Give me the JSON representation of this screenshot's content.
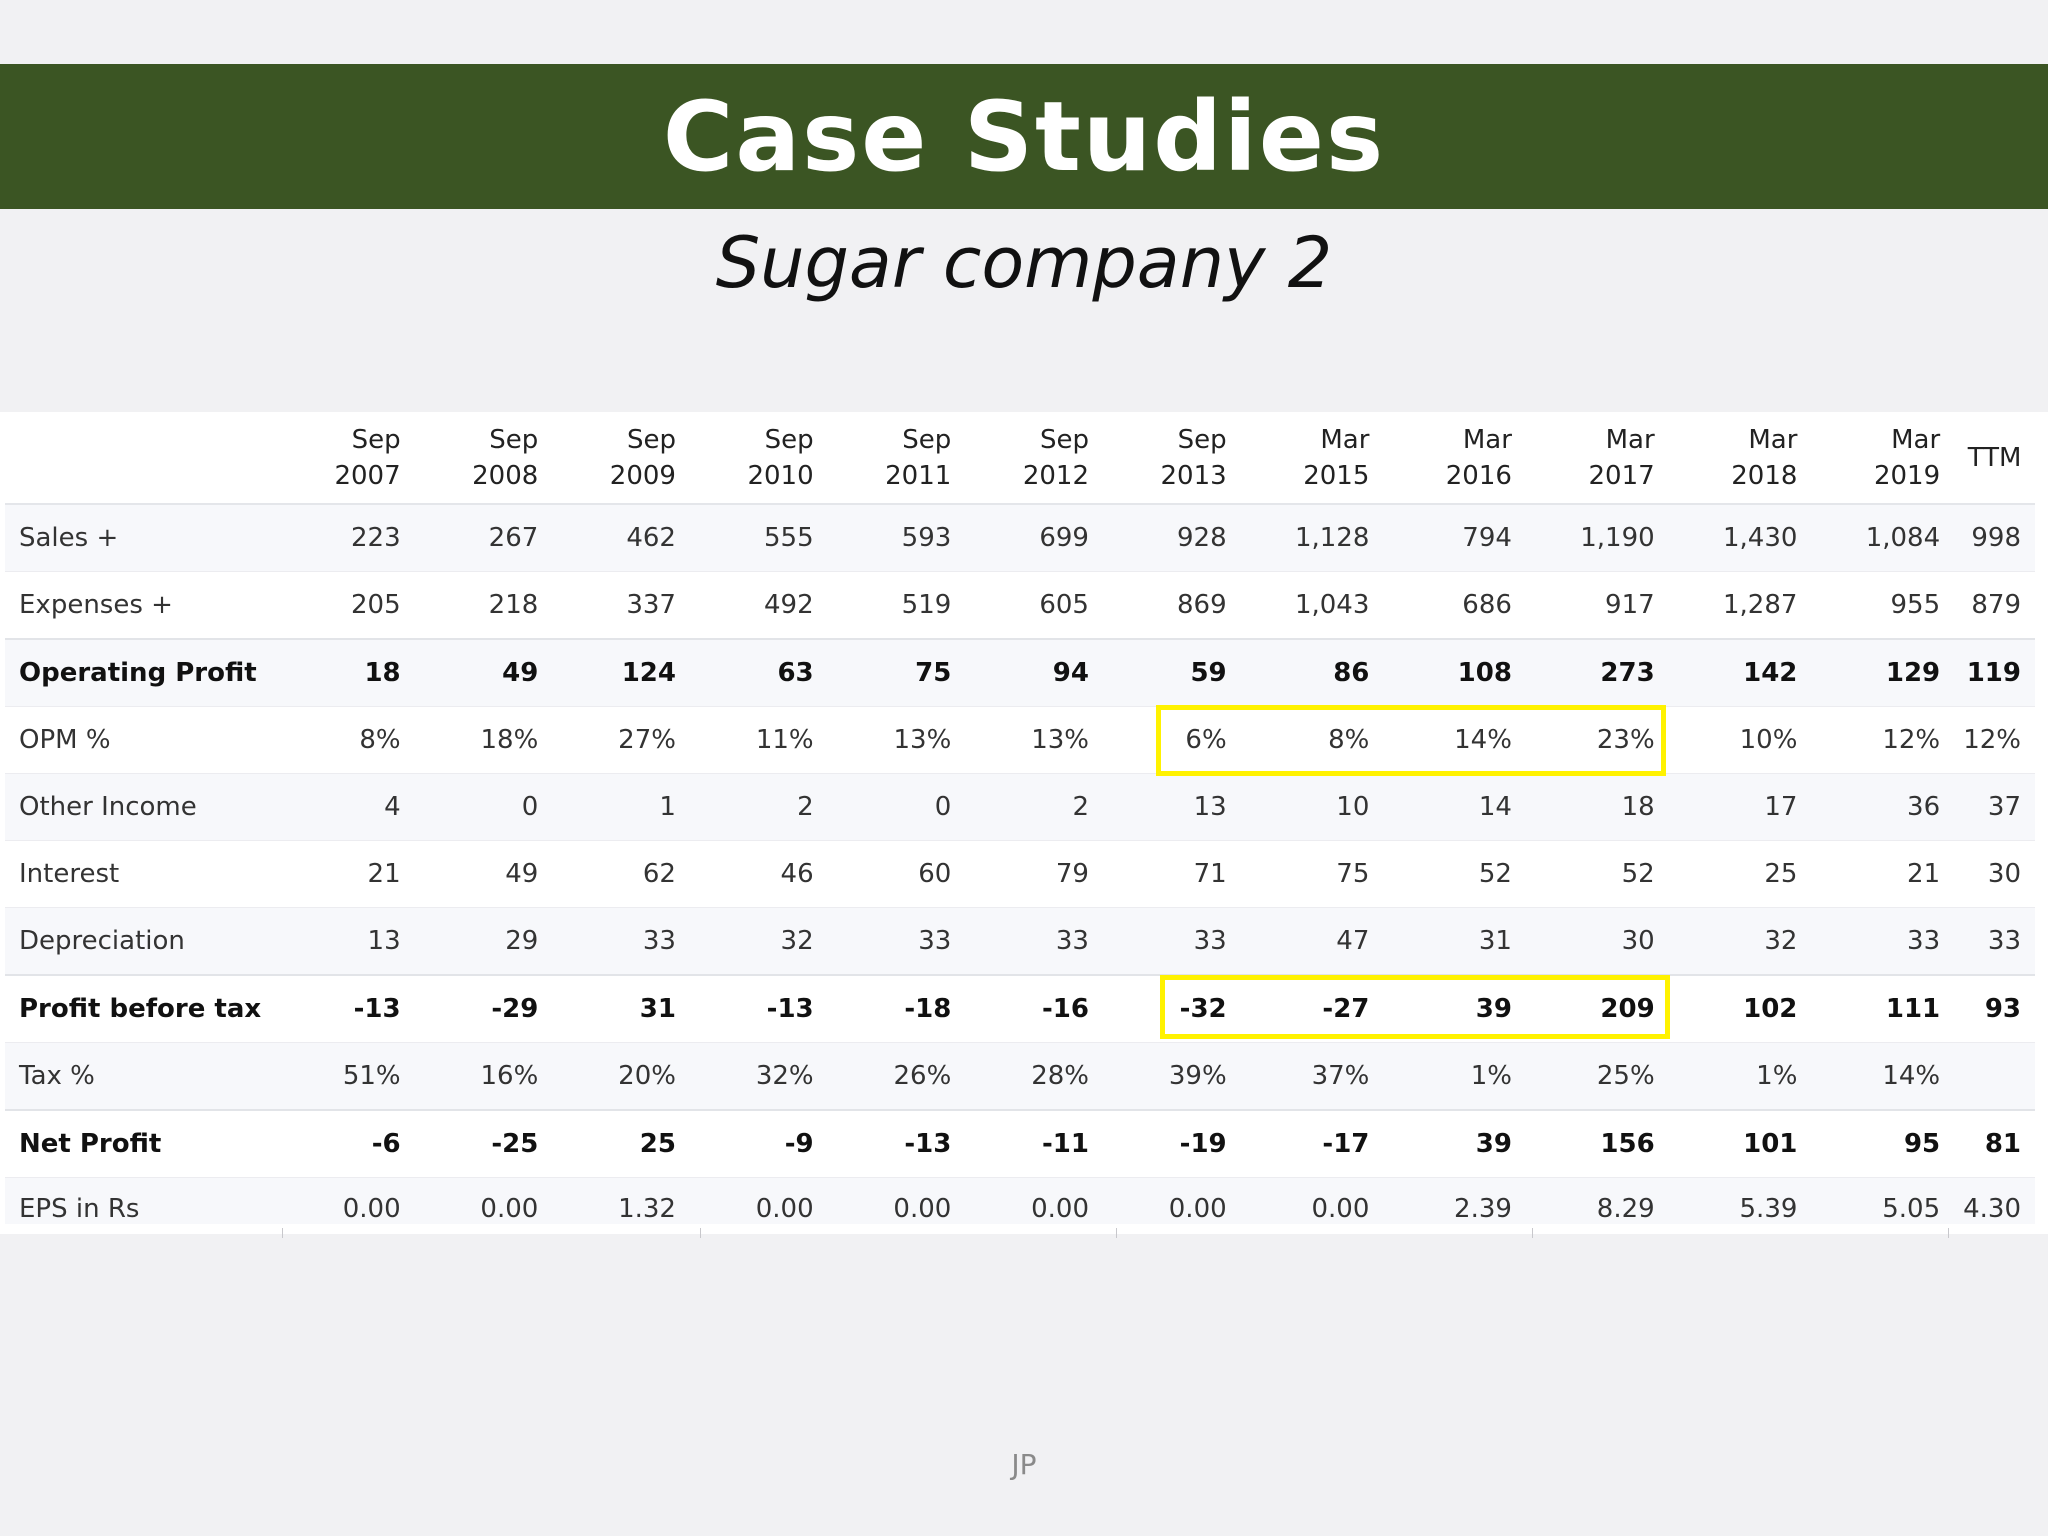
{
  "slide": {
    "title": "Case Studies",
    "subtitle": "Sugar company 2",
    "footer": "JP",
    "highlight_color": "#fff200",
    "header_color": "#3b5523"
  },
  "table": {
    "columns": [
      {
        "line1": "Sep",
        "line2": "2007"
      },
      {
        "line1": "Sep",
        "line2": "2008"
      },
      {
        "line1": "Sep",
        "line2": "2009"
      },
      {
        "line1": "Sep",
        "line2": "2010"
      },
      {
        "line1": "Sep",
        "line2": "2011"
      },
      {
        "line1": "Sep",
        "line2": "2012"
      },
      {
        "line1": "Sep",
        "line2": "2013"
      },
      {
        "line1": "Mar",
        "line2": "2015"
      },
      {
        "line1": "Mar",
        "line2": "2016"
      },
      {
        "line1": "Mar",
        "line2": "2017"
      },
      {
        "line1": "Mar",
        "line2": "2018"
      },
      {
        "line1": "Mar",
        "line2": "2019"
      },
      {
        "line1": "TTM",
        "line2": ""
      }
    ],
    "rows": [
      {
        "label": "Sales +",
        "bold": false,
        "values": [
          "223",
          "267",
          "462",
          "555",
          "593",
          "699",
          "928",
          "1,128",
          "794",
          "1,190",
          "1,430",
          "1,084",
          "998"
        ]
      },
      {
        "label": "Expenses +",
        "bold": false,
        "values": [
          "205",
          "218",
          "337",
          "492",
          "519",
          "605",
          "869",
          "1,043",
          "686",
          "917",
          "1,287",
          "955",
          "879"
        ]
      },
      {
        "label": "Operating Profit",
        "bold": true,
        "values": [
          "18",
          "49",
          "124",
          "63",
          "75",
          "94",
          "59",
          "86",
          "108",
          "273",
          "142",
          "129",
          "119"
        ]
      },
      {
        "label": "OPM %",
        "bold": false,
        "values": [
          "8%",
          "18%",
          "27%",
          "11%",
          "13%",
          "13%",
          "6%",
          "8%",
          "14%",
          "23%",
          "10%",
          "12%",
          "12%"
        ]
      },
      {
        "label": "Other Income",
        "bold": false,
        "values": [
          "4",
          "0",
          "1",
          "2",
          "0",
          "2",
          "13",
          "10",
          "14",
          "18",
          "17",
          "36",
          "37"
        ]
      },
      {
        "label": "Interest",
        "bold": false,
        "values": [
          "21",
          "49",
          "62",
          "46",
          "60",
          "79",
          "71",
          "75",
          "52",
          "52",
          "25",
          "21",
          "30"
        ]
      },
      {
        "label": "Depreciation",
        "bold": false,
        "values": [
          "13",
          "29",
          "33",
          "32",
          "33",
          "33",
          "33",
          "47",
          "31",
          "30",
          "32",
          "33",
          "33"
        ]
      },
      {
        "label": "Profit before tax",
        "bold": true,
        "values": [
          "-13",
          "-29",
          "31",
          "-13",
          "-18",
          "-16",
          "-32",
          "-27",
          "39",
          "209",
          "102",
          "111",
          "93"
        ]
      },
      {
        "label": "Tax %",
        "bold": false,
        "values": [
          "51%",
          "16%",
          "20%",
          "32%",
          "26%",
          "28%",
          "39%",
          "37%",
          "1%",
          "25%",
          "1%",
          "14%",
          ""
        ]
      },
      {
        "label": "Net Profit",
        "bold": true,
        "values": [
          "-6",
          "-25",
          "25",
          "-9",
          "-13",
          "-11",
          "-19",
          "-17",
          "39",
          "156",
          "101",
          "95",
          "81"
        ]
      },
      {
        "label": "EPS in Rs",
        "bold": false,
        "values": [
          "0.00",
          "0.00",
          "1.32",
          "0.00",
          "0.00",
          "0.00",
          "0.00",
          "0.00",
          "2.39",
          "8.29",
          "5.39",
          "5.05",
          "4.30"
        ]
      }
    ]
  }
}
